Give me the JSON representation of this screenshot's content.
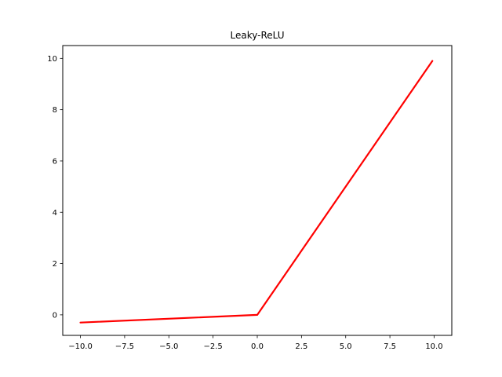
{
  "chart_data": {
    "type": "line",
    "title": "Leaky-ReLU",
    "xlabel": "",
    "ylabel": "",
    "xlim": [
      -11.0,
      11.0
    ],
    "ylim": [
      -0.8,
      10.5
    ],
    "grid": false,
    "xticks": [
      -10.0,
      -7.5,
      -5.0,
      -2.5,
      0.0,
      2.5,
      5.0,
      7.5,
      10.0
    ],
    "xtick_labels": [
      "−10.0",
      "−7.5",
      "−5.0",
      "−2.5",
      "0.0",
      "2.5",
      "5.0",
      "7.5",
      "10.0"
    ],
    "yticks": [
      0,
      2,
      4,
      6,
      8,
      10
    ],
    "ytick_labels": [
      "0",
      "2",
      "4",
      "6",
      "8",
      "10"
    ],
    "series": [
      {
        "color": "#ff0000",
        "x": [
          -10.0,
          0.0,
          9.9
        ],
        "y": [
          -0.3,
          0.0,
          9.9
        ]
      }
    ]
  }
}
